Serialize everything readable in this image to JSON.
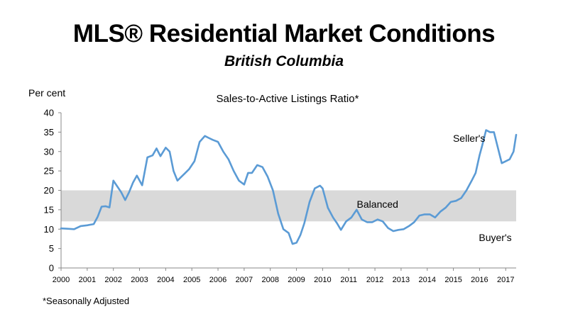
{
  "page": {
    "title": "MLS® Residential Market Conditions",
    "subtitle": "British Columbia",
    "footnote": "*Seasonally Adjusted"
  },
  "chart_data": {
    "type": "line",
    "title": "Sales-to-Active Listings Ratio*",
    "ylabel": "Per cent",
    "xlabel": "",
    "ylim": [
      0,
      40
    ],
    "xlim": [
      2000,
      2017.4
    ],
    "y_ticks": [
      0,
      5,
      10,
      15,
      20,
      25,
      30,
      35,
      40
    ],
    "x_ticks": [
      "2000",
      "2001",
      "2002",
      "2003",
      "2004",
      "2005",
      "2006",
      "2007",
      "2008",
      "2009",
      "2010",
      "2011",
      "2012",
      "2013",
      "2014",
      "2015",
      "2016",
      "2017"
    ],
    "grid": false,
    "band": {
      "label": "Balanced",
      "from": 12,
      "to": 20,
      "color": "#d9d9d9"
    },
    "region_labels": [
      {
        "text": "Seller's",
        "x": 2015.6,
        "y": 32.5
      },
      {
        "text": "Balanced",
        "x": 2012.1,
        "y": 15.5
      },
      {
        "text": "Buyer's",
        "x": 2016.6,
        "y": 6.9
      }
    ],
    "line_color": "#5b9bd5",
    "series": [
      {
        "x": [
          2000.0,
          2000.25,
          2000.5,
          2000.75,
          2001.0,
          2001.25,
          2001.4,
          2001.55,
          2001.7,
          2001.85,
          2002.0,
          2002.15,
          2002.3,
          2002.45,
          2002.6,
          2002.75,
          2002.9,
          2003.1,
          2003.3,
          2003.5,
          2003.65,
          2003.8,
          2004.0,
          2004.15,
          2004.3,
          2004.45,
          2004.6,
          2004.75,
          2004.9,
          2005.1,
          2005.3,
          2005.5,
          2005.65,
          2005.8,
          2006.0,
          2006.2,
          2006.4,
          2006.6,
          2006.8,
          2007.0,
          2007.15,
          2007.3,
          2007.5,
          2007.7,
          2007.9,
          2008.1,
          2008.3,
          2008.5,
          2008.7,
          2008.85,
          2009.0,
          2009.15,
          2009.3,
          2009.5,
          2009.7,
          2009.9,
          2010.0,
          2010.2,
          2010.4,
          2010.55,
          2010.7,
          2010.9,
          2011.1,
          2011.3,
          2011.5,
          2011.7,
          2011.9,
          2012.1,
          2012.3,
          2012.5,
          2012.7,
          2012.9,
          2013.1,
          2013.3,
          2013.5,
          2013.7,
          2013.9,
          2014.1,
          2014.3,
          2014.5,
          2014.7,
          2014.9,
          2015.1,
          2015.3,
          2015.5,
          2015.7,
          2015.85,
          2016.0,
          2016.1,
          2016.25,
          2016.4,
          2016.55,
          2016.7,
          2016.85,
          2017.0,
          2017.15,
          2017.3,
          2017.4
        ],
        "y": [
          10.2,
          10.1,
          10.0,
          10.8,
          11.0,
          11.3,
          13.2,
          15.8,
          15.9,
          15.6,
          22.5,
          21.0,
          19.5,
          17.5,
          19.5,
          22.0,
          23.8,
          21.3,
          28.5,
          29.0,
          30.8,
          28.8,
          31.0,
          30.0,
          25.0,
          22.5,
          23.5,
          24.5,
          25.5,
          27.5,
          32.5,
          34.0,
          33.5,
          33.0,
          32.5,
          30.0,
          28.0,
          25.0,
          22.5,
          21.5,
          24.5,
          24.5,
          26.5,
          26.0,
          23.5,
          20.0,
          14.0,
          10.0,
          9.0,
          6.2,
          6.5,
          8.5,
          11.5,
          17.0,
          20.5,
          21.2,
          20.5,
          15.5,
          13.0,
          11.5,
          9.8,
          12.0,
          13.0,
          15.0,
          12.5,
          11.8,
          11.8,
          12.5,
          12.0,
          10.3,
          9.5,
          9.8,
          10.0,
          10.8,
          11.8,
          13.5,
          13.8,
          13.8,
          13.0,
          14.5,
          15.5,
          17.0,
          17.3,
          18.0,
          20.0,
          22.5,
          24.5,
          29.0,
          31.5,
          35.5,
          35.0,
          35.0,
          31.0,
          27.0,
          27.5,
          28.0,
          30.0,
          34.3
        ]
      }
    ]
  }
}
